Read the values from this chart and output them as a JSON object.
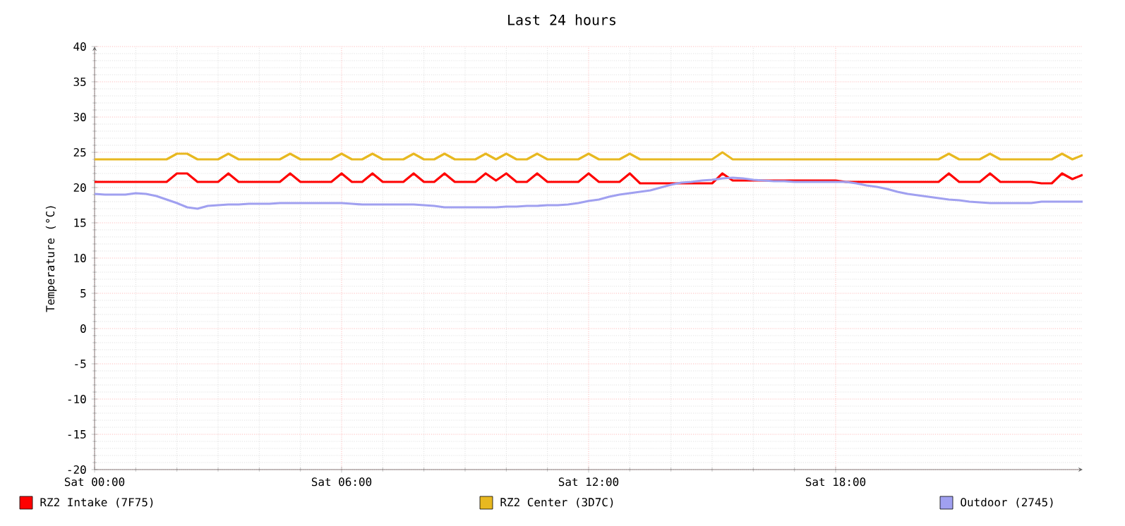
{
  "chart_data": {
    "type": "line",
    "title": "Last 24 hours",
    "ylabel": "Temperature (°C)",
    "ylim": [
      -20,
      40
    ],
    "categories": [
      "Sat 00:00",
      null,
      null,
      null,
      null,
      null,
      null,
      null,
      null,
      null,
      null,
      null,
      null,
      null,
      null,
      null,
      null,
      null,
      null,
      null,
      null,
      null,
      null,
      null,
      "Sat 06:00",
      null,
      null,
      null,
      null,
      null,
      null,
      null,
      null,
      null,
      null,
      null,
      null,
      null,
      null,
      null,
      null,
      null,
      null,
      null,
      null,
      null,
      null,
      null,
      "Sat 12:00",
      null,
      null,
      null,
      null,
      null,
      null,
      null,
      null,
      null,
      null,
      null,
      null,
      null,
      null,
      null,
      null,
      null,
      null,
      null,
      null,
      null,
      null,
      null,
      "Sat 18:00",
      null,
      null,
      null,
      null,
      null,
      null,
      null,
      null,
      null,
      null,
      null,
      null,
      null,
      null,
      null,
      null,
      null,
      null,
      null,
      null,
      null,
      null,
      null,
      null
    ],
    "yticks": [
      -20,
      -15,
      -10,
      -5,
      0,
      5,
      10,
      15,
      20,
      25,
      30,
      35,
      40
    ],
    "grid": true,
    "legend": "bottom",
    "marker": "none",
    "line_style": "solid",
    "series": [
      {
        "name": "RZ2 Intake (7F75)",
        "color": "#ff0000",
        "values": [
          20.8,
          20.8,
          20.8,
          20.8,
          20.8,
          20.8,
          20.8,
          20.8,
          22,
          22,
          20.8,
          20.8,
          20.8,
          22,
          20.8,
          20.8,
          20.8,
          20.8,
          20.8,
          22,
          20.8,
          20.8,
          20.8,
          20.8,
          22,
          20.8,
          20.8,
          22,
          20.8,
          20.8,
          20.8,
          22,
          20.8,
          20.8,
          22,
          20.8,
          20.8,
          20.8,
          22,
          21,
          22,
          20.8,
          20.8,
          22,
          20.8,
          20.8,
          20.8,
          20.8,
          22,
          20.8,
          20.8,
          20.8,
          22,
          20.6,
          20.6,
          20.6,
          20.6,
          20.6,
          20.6,
          20.6,
          20.6,
          22,
          21,
          21,
          21,
          21,
          21,
          21,
          21,
          21,
          21,
          21,
          21,
          20.8,
          20.8,
          20.8,
          20.8,
          20.8,
          20.8,
          20.8,
          20.8,
          20.8,
          20.8,
          22,
          20.8,
          20.8,
          20.8,
          22,
          20.8,
          20.8,
          20.8,
          20.8,
          20.6,
          20.6,
          22,
          21.2,
          21.8
        ]
      },
      {
        "name": "RZ2 Center (3D7C)",
        "color": "#e8b820",
        "values": [
          24,
          24,
          24,
          24,
          24,
          24,
          24,
          24,
          24.8,
          24.8,
          24,
          24,
          24,
          24.8,
          24,
          24,
          24,
          24,
          24,
          24.8,
          24,
          24,
          24,
          24,
          24.8,
          24,
          24,
          24.8,
          24,
          24,
          24,
          24.8,
          24,
          24,
          24.8,
          24,
          24,
          24,
          24.8,
          24,
          24.8,
          24,
          24,
          24.8,
          24,
          24,
          24,
          24,
          24.8,
          24,
          24,
          24,
          24.8,
          24,
          24,
          24,
          24,
          24,
          24,
          24,
          24,
          25,
          24,
          24,
          24,
          24,
          24,
          24,
          24,
          24,
          24,
          24,
          24,
          24,
          24,
          24,
          24,
          24,
          24,
          24,
          24,
          24,
          24,
          24.8,
          24,
          24,
          24,
          24.8,
          24,
          24,
          24,
          24,
          24,
          24,
          24.8,
          24,
          24.6
        ]
      },
      {
        "name": "Outdoor (2745)",
        "color": "#a0a0f0",
        "values": [
          19.1,
          19.0,
          19.0,
          19.0,
          19.2,
          19.1,
          18.8,
          18.3,
          17.8,
          17.2,
          17.0,
          17.4,
          17.5,
          17.6,
          17.6,
          17.7,
          17.7,
          17.7,
          17.8,
          17.8,
          17.8,
          17.8,
          17.8,
          17.8,
          17.8,
          17.7,
          17.6,
          17.6,
          17.6,
          17.6,
          17.6,
          17.6,
          17.5,
          17.4,
          17.2,
          17.2,
          17.2,
          17.2,
          17.2,
          17.2,
          17.3,
          17.3,
          17.4,
          17.4,
          17.5,
          17.5,
          17.6,
          17.8,
          18.1,
          18.3,
          18.7,
          19.0,
          19.2,
          19.4,
          19.6,
          20.0,
          20.4,
          20.7,
          20.8,
          21.0,
          21.1,
          21.3,
          21.4,
          21.3,
          21.1,
          21.0,
          20.9,
          20.9,
          20.8,
          20.8,
          20.8,
          20.8,
          20.8,
          20.8,
          20.6,
          20.3,
          20.1,
          19.8,
          19.4,
          19.1,
          18.9,
          18.7,
          18.5,
          18.3,
          18.2,
          18.0,
          17.9,
          17.8,
          17.8,
          17.8,
          17.8,
          17.8,
          18.0,
          18.0,
          18.0,
          18.0,
          18.0
        ]
      }
    ]
  }
}
